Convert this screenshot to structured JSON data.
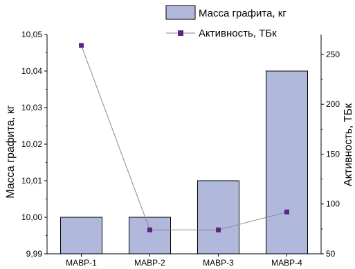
{
  "chart_data": {
    "type": "bar",
    "categories": [
      "МАВР-1",
      "МАВР-2",
      "МАВР-3",
      "МАВР-4"
    ],
    "series": [
      {
        "name": "Масса графита, кг",
        "type": "bar",
        "axis": "left",
        "values": [
          10.0,
          10.0,
          10.01,
          10.04
        ],
        "color": "#b0b8dc",
        "edge_color": "#000000"
      },
      {
        "name": "Активность, ТБк",
        "type": "line",
        "axis": "right",
        "values": [
          259,
          74,
          74,
          92
        ],
        "color": "#5b2585",
        "line_color": "#8a8a8a",
        "marker": "square"
      }
    ],
    "ylabel": "Масса графита, кг",
    "ylim": [
      9.99,
      10.05
    ],
    "yticks": [
      "9,99",
      "10,00",
      "10,01",
      "10,02",
      "10,03",
      "10,04",
      "10,05"
    ],
    "y2label": "Активность, ТБк",
    "y2lim": [
      50,
      270
    ],
    "y2ticks": [
      "50",
      "100",
      "150",
      "200",
      "250"
    ],
    "legend_position": "top-right",
    "grid": false
  }
}
